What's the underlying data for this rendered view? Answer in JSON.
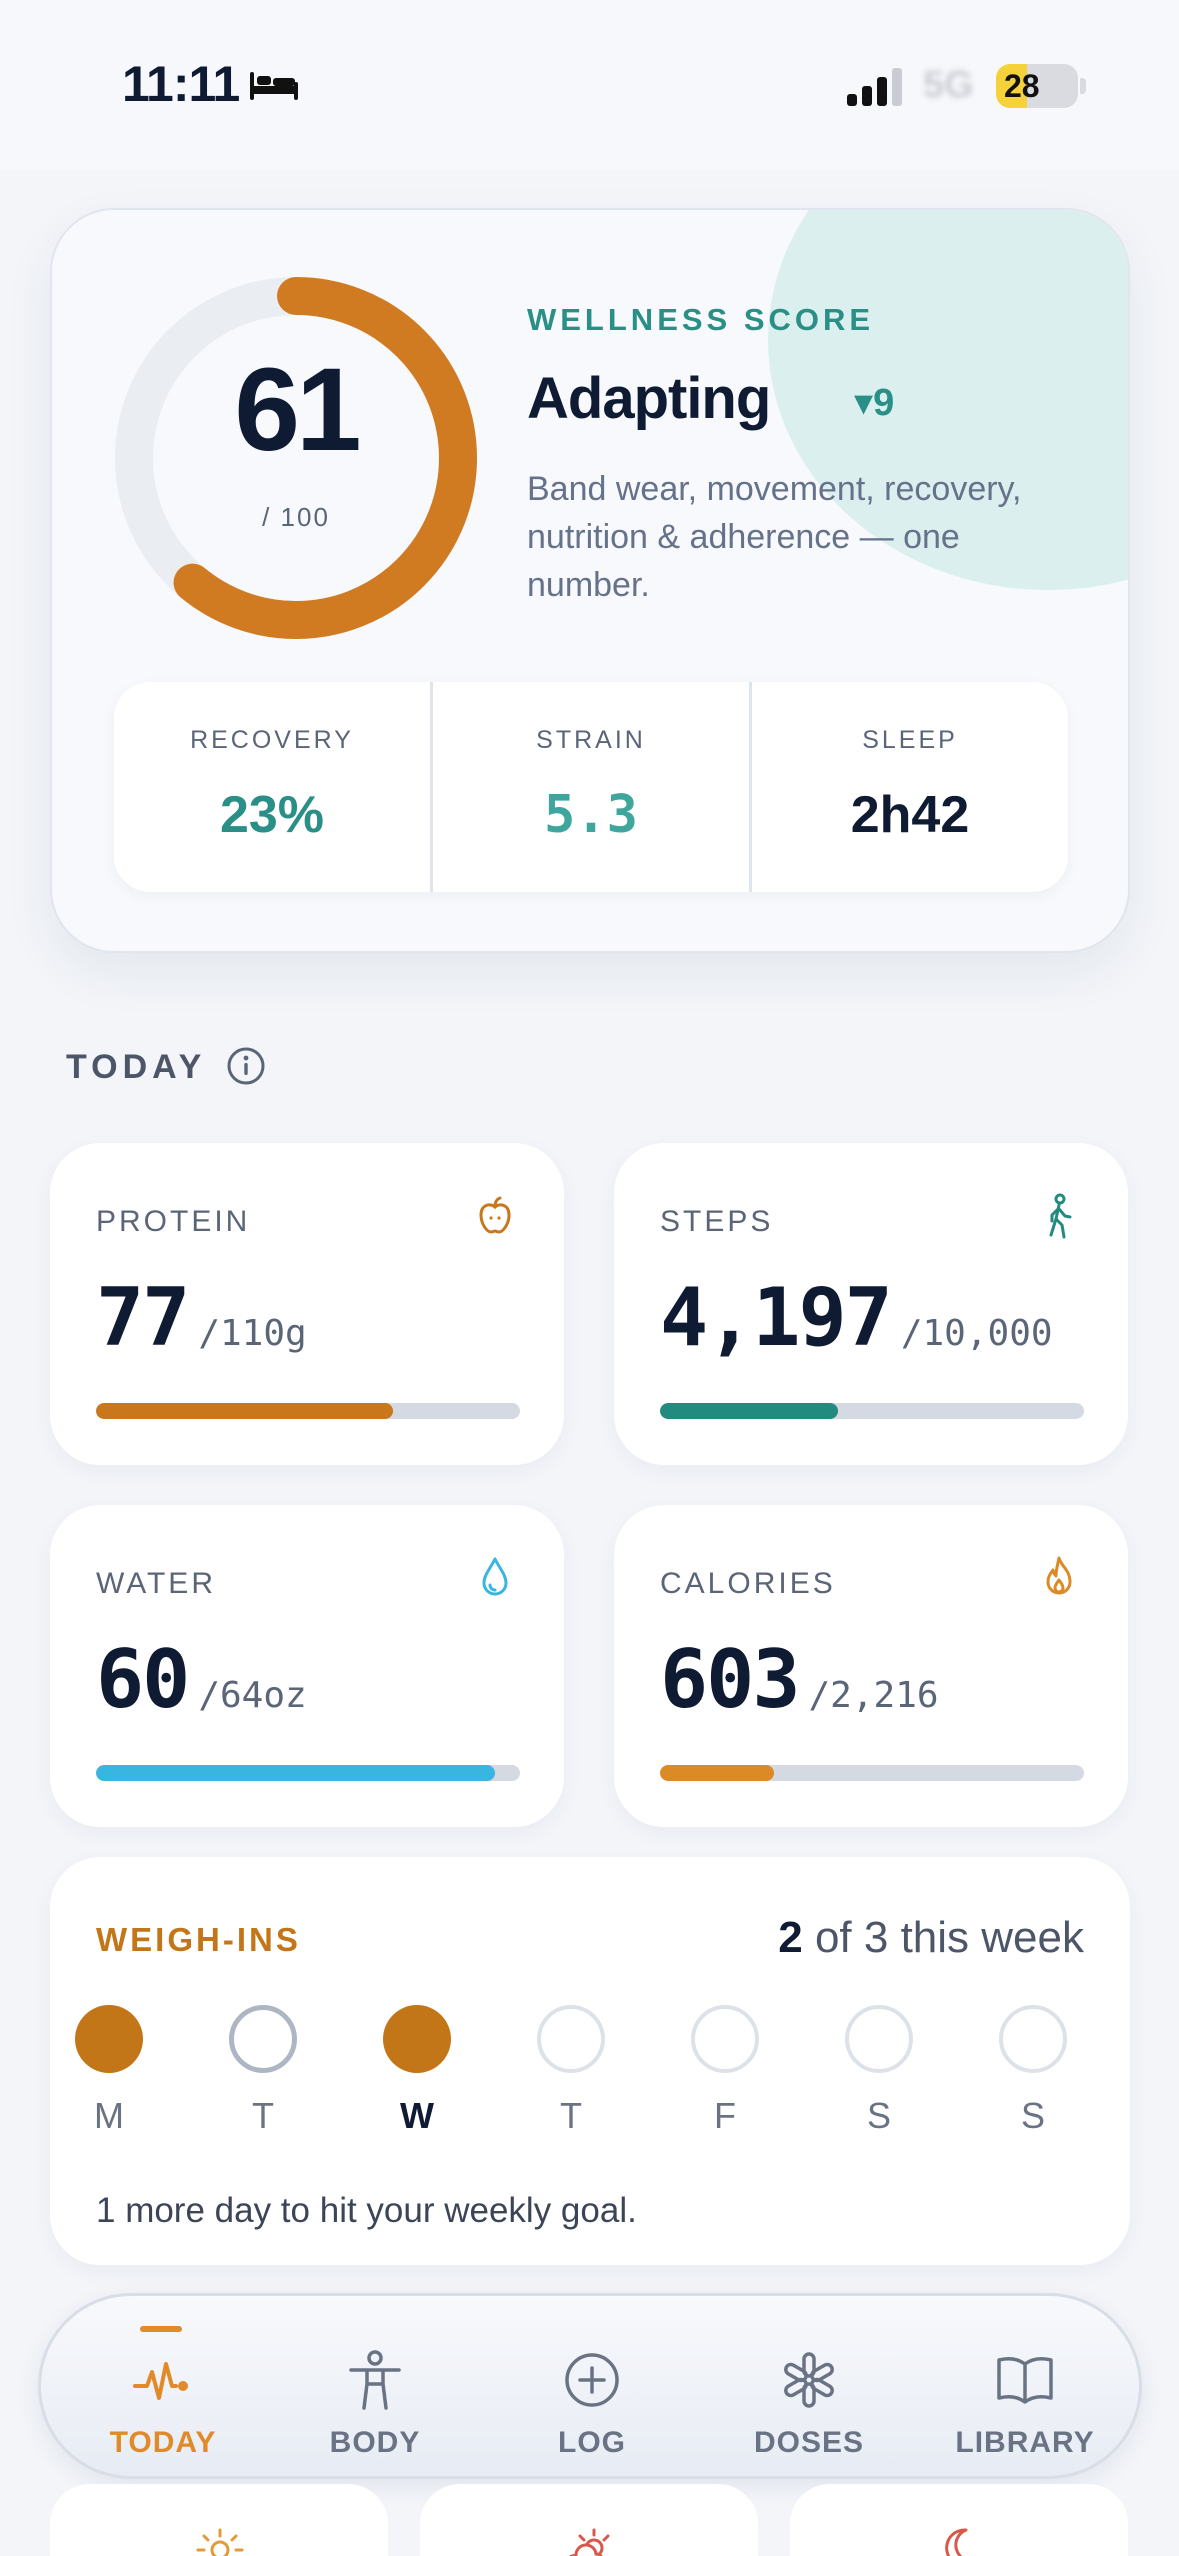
{
  "status_bar": {
    "time": "11:11",
    "network": "5G",
    "battery": "28",
    "icons": [
      "bed-icon",
      "signal-icon",
      "battery-icon"
    ]
  },
  "wellness": {
    "score": "61",
    "score_max": "/ 100",
    "score_fraction": 0.61,
    "label": "WELLNESS SCORE",
    "status": "Adapting",
    "delta": "▾9",
    "description": "Band wear, movement, recovery, nutrition & adherence — one number.",
    "metrics": [
      {
        "label": "RECOVERY",
        "value": "23%",
        "color": "#2a8f86"
      },
      {
        "label": "STRAIN",
        "value": "5.3",
        "color": "#3ea69c"
      },
      {
        "label": "SLEEP",
        "value": "2h42",
        "color": "#0f1a33"
      }
    ]
  },
  "today": {
    "heading": "TODAY",
    "cards": [
      {
        "label": "PROTEIN",
        "value": "77",
        "goal": "/110g",
        "progress": 0.7,
        "color": "#c9761d",
        "icon": "apple-icon"
      },
      {
        "label": "STEPS",
        "value": "4,197",
        "goal": "/10,000",
        "progress": 0.42,
        "color": "#238a80",
        "icon": "walking-icon"
      },
      {
        "label": "WATER",
        "value": "60",
        "goal": "/64oz",
        "progress": 0.94,
        "color": "#38b6e0",
        "icon": "water-drop-icon"
      },
      {
        "label": "CALORIES",
        "value": "603",
        "goal": "/2,216",
        "progress": 0.27,
        "color": "#dc8a26",
        "icon": "flame-icon"
      }
    ]
  },
  "weigh_ins": {
    "title": "WEIGH-INS",
    "count": "2",
    "count_suffix": " of 3 this week",
    "days": [
      {
        "label": "M",
        "state": "filled"
      },
      {
        "label": "T",
        "state": "today"
      },
      {
        "label": "W",
        "state": "filled"
      },
      {
        "label": "T",
        "state": "empty"
      },
      {
        "label": "F",
        "state": "empty"
      },
      {
        "label": "S",
        "state": "empty"
      },
      {
        "label": "S",
        "state": "empty"
      }
    ],
    "note": "1 more day to hit your weekly goal."
  },
  "tabs": [
    {
      "label": "TODAY",
      "icon": "pulse-icon",
      "active": true
    },
    {
      "label": "BODY",
      "icon": "body-icon",
      "active": false
    },
    {
      "label": "LOG",
      "icon": "plus-circle-icon",
      "active": false
    },
    {
      "label": "DOSES",
      "icon": "asterisk-icon",
      "active": false
    },
    {
      "label": "LIBRARY",
      "icon": "book-icon",
      "active": false
    }
  ],
  "colors": {
    "accent_orange": "#c37618",
    "accent_teal": "#2a8f86",
    "navy": "#0f1a33"
  }
}
